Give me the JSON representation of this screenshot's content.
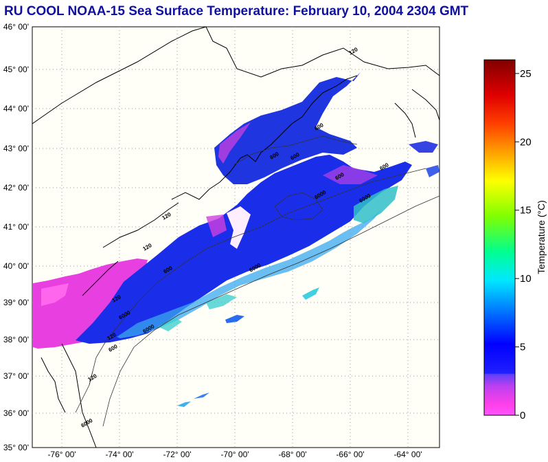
{
  "title": "RU COOL  NOAA-15  Sea Surface Temperature:  February 10, 2004 2304 GMT",
  "map": {
    "lat_labels": [
      "46° 00'",
      "45° 00'",
      "44° 00'",
      "43° 00'",
      "42° 00'",
      "41° 00'",
      "40° 00'",
      "39° 00'",
      "38° 00'",
      "37° 00'",
      "36° 00'",
      "35° 00'"
    ],
    "lon_labels": [
      "-76° 00'",
      "-74° 00'",
      "-72° 00'",
      "-70° 00'",
      "-68° 00'",
      "-66° 00'",
      "-64° 00'"
    ],
    "lat_range": [
      35,
      46
    ],
    "lon_range": [
      -77,
      -63
    ],
    "contour_labels": [
      "120",
      "120",
      "120",
      "120",
      "120",
      "120",
      "600",
      "600",
      "600",
      "600",
      "600",
      "600",
      "600",
      "6000",
      "6000",
      "6000",
      "6000",
      "6000",
      "6000"
    ]
  },
  "colorbar": {
    "title": "Temperature (°C)",
    "ticks": [
      "25",
      "20",
      "15",
      "10",
      "5",
      "0"
    ],
    "range": [
      0,
      26
    ]
  }
}
